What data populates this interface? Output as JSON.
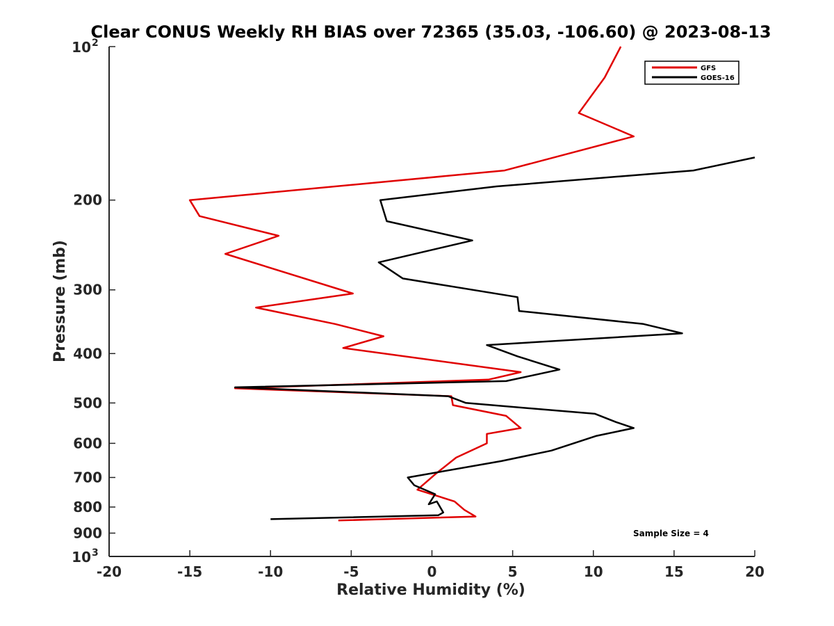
{
  "chart_data": {
    "type": "line",
    "title": "Clear CONUS Weekly RH BIAS over 72365 (35.03, -106.60) @ 2023-08-13",
    "xlabel": "Relative Humidity (%)",
    "ylabel": "Pressure (mb)",
    "xlim": [
      -20,
      20
    ],
    "ylim": [
      100,
      1000
    ],
    "y_scale": "log",
    "y_reversed": true,
    "grid": false,
    "legend_position": "top-right",
    "x_ticks": [
      "-20",
      "-15",
      "-10",
      "-5",
      "0",
      "5",
      "10",
      "15",
      "20"
    ],
    "y_ticks": [
      {
        "value": 100,
        "base": "10",
        "exp": "2"
      },
      {
        "value": 200,
        "label": "200"
      },
      {
        "value": 300,
        "label": "300"
      },
      {
        "value": 400,
        "label": "400"
      },
      {
        "value": 500,
        "label": "500"
      },
      {
        "value": 600,
        "label": "600"
      },
      {
        "value": 700,
        "label": "700"
      },
      {
        "value": 800,
        "label": "800"
      },
      {
        "value": 900,
        "label": "900"
      },
      {
        "value": 1000,
        "base": "10",
        "exp": "3"
      }
    ],
    "series": [
      {
        "name": "GFS",
        "color": "#e00000",
        "points": [
          [
            11.7,
            100
          ],
          [
            10.7,
            115
          ],
          [
            9.1,
            135
          ],
          [
            12.5,
            150
          ],
          [
            4.5,
            175
          ],
          [
            -15.0,
            200
          ],
          [
            -14.4,
            215
          ],
          [
            -9.5,
            235
          ],
          [
            -12.8,
            255
          ],
          [
            -4.9,
            305
          ],
          [
            -10.9,
            325
          ],
          [
            -6.0,
            350
          ],
          [
            -3.0,
            370
          ],
          [
            -5.5,
            390
          ],
          [
            5.5,
            435
          ],
          [
            3.5,
            450
          ],
          [
            -12.2,
            468
          ],
          [
            1.2,
            485
          ],
          [
            1.3,
            505
          ],
          [
            4.6,
            530
          ],
          [
            5.5,
            560
          ],
          [
            3.4,
            575
          ],
          [
            3.4,
            600
          ],
          [
            1.5,
            640
          ],
          [
            0.2,
            690
          ],
          [
            -0.9,
            740
          ],
          [
            1.4,
            780
          ],
          [
            2.0,
            810
          ],
          [
            2.7,
            835
          ],
          [
            -5.8,
            850
          ]
        ]
      },
      {
        "name": "GOES-16",
        "color": "#000000",
        "points": [
          [
            20.0,
            165
          ],
          [
            16.2,
            175
          ],
          [
            4.0,
            188
          ],
          [
            -3.2,
            200
          ],
          [
            -2.8,
            220
          ],
          [
            2.5,
            240
          ],
          [
            -3.3,
            265
          ],
          [
            -1.8,
            285
          ],
          [
            5.3,
            310
          ],
          [
            5.4,
            330
          ],
          [
            13.1,
            350
          ],
          [
            15.5,
            365
          ],
          [
            3.4,
            385
          ],
          [
            5.3,
            405
          ],
          [
            7.9,
            430
          ],
          [
            4.6,
            453
          ],
          [
            -12.2,
            466
          ],
          [
            1.0,
            485
          ],
          [
            2.1,
            500
          ],
          [
            10.1,
            525
          ],
          [
            11.4,
            545
          ],
          [
            12.5,
            560
          ],
          [
            10.2,
            580
          ],
          [
            7.4,
            620
          ],
          [
            4.3,
            650
          ],
          [
            -1.5,
            700
          ],
          [
            -1.1,
            725
          ],
          [
            0.2,
            755
          ],
          [
            -0.2,
            790
          ],
          [
            0.3,
            780
          ],
          [
            0.7,
            820
          ],
          [
            0.4,
            830
          ],
          [
            -10.0,
            845
          ]
        ]
      }
    ],
    "annotations": [
      "Sample Size = 4"
    ]
  }
}
